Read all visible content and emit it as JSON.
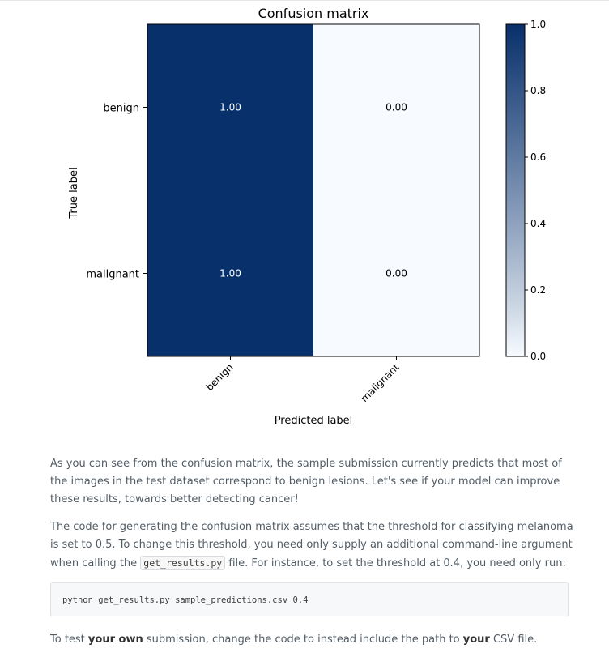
{
  "chart_data": {
    "type": "heatmap",
    "title": "Confusion matrix",
    "xlabel": "Predicted label",
    "ylabel": "True label",
    "row_labels": [
      "benign",
      "malignant"
    ],
    "col_labels": [
      "benign",
      "malignant"
    ],
    "values": [
      [
        1.0,
        0.0
      ],
      [
        1.0,
        0.0
      ]
    ],
    "cell_text": [
      [
        "1.00",
        "0.00"
      ],
      [
        "1.00",
        "0.00"
      ]
    ],
    "colorbar": {
      "range": [
        0.0,
        1.0
      ],
      "ticks": [
        "0.0",
        "0.2",
        "0.4",
        "0.6",
        "0.8",
        "1.0"
      ]
    },
    "colormap": {
      "low": "#f7fbff",
      "high": "#08306b"
    },
    "text_colors": {
      "on_dark": "#ffffff",
      "on_light": "#000000"
    }
  },
  "body": {
    "p1": "As you can see from the confusion matrix, the sample submission currently predicts that most of the images in the test dataset correspond to benign lesions. Let's see if your model can improve these results, towards better detecting cancer!",
    "p2_before": "The code for generating the confusion matrix assumes that the threshold for classifying melanoma is set to 0.5. To change this threshold, you need only supply an additional command-line argument when calling the ",
    "p2_code": "get_results.py",
    "p2_after": " file. For instance, to set the threshold at 0.4, you need only run:",
    "code_block": "python get_results.py sample_predictions.csv 0.4",
    "p3_before": "To test ",
    "p3_bold1": "your own",
    "p3_mid": " submission, change the code to instead include the path to ",
    "p3_bold2": "your",
    "p3_after": " CSV file."
  }
}
